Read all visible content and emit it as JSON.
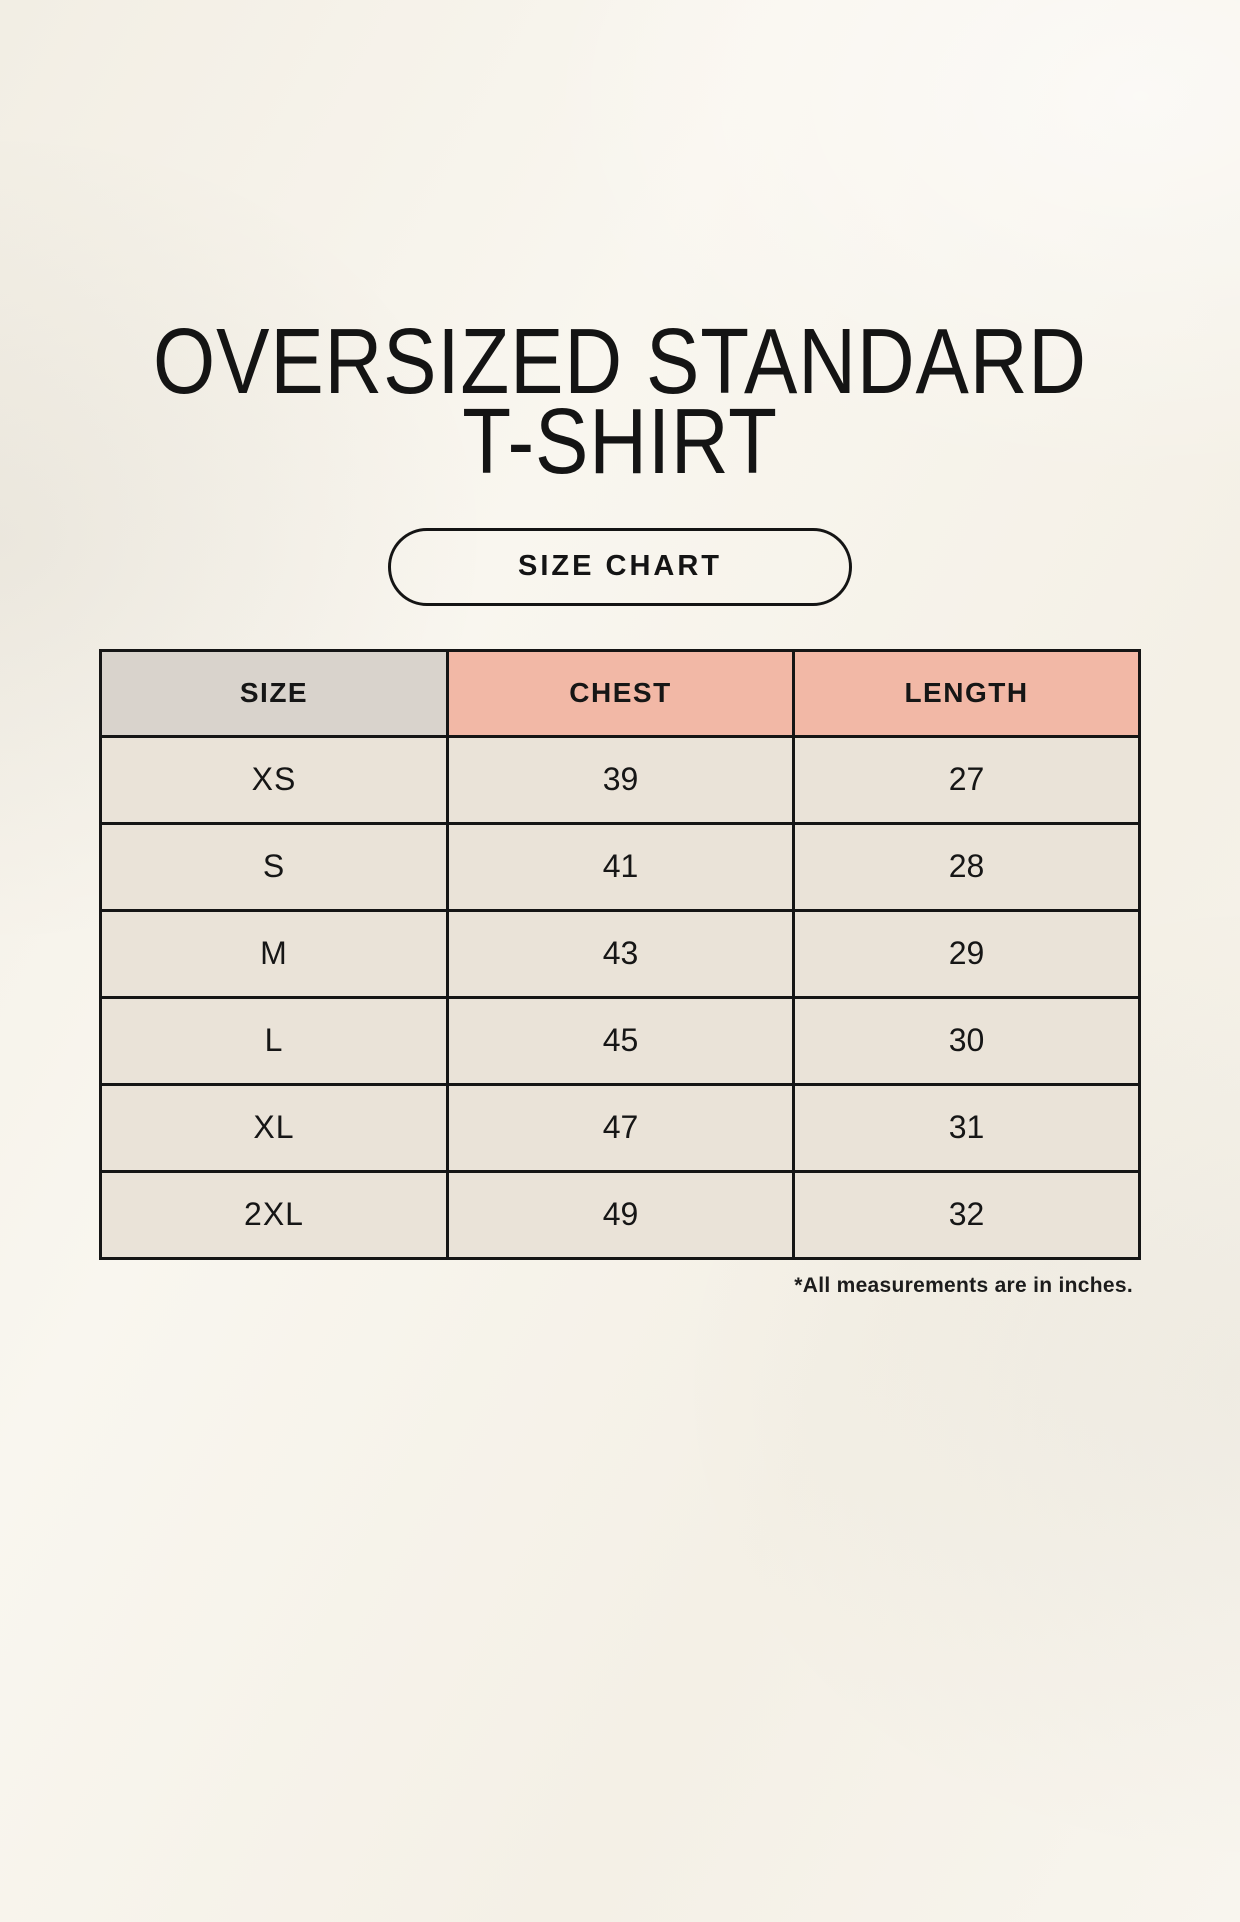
{
  "page": {
    "background_color": "#f7f4ec",
    "text_color": "#161616"
  },
  "title": {
    "line1": "OVERSIZED STANDARD",
    "line2": "T-SHIRT"
  },
  "size_chart_button": {
    "label": "SIZE CHART"
  },
  "size_table": {
    "columns": [
      "SIZE",
      "CHEST",
      "LENGTH"
    ],
    "rows": [
      {
        "size": "XS",
        "chest": "39",
        "length": "27"
      },
      {
        "size": "S",
        "chest": "41",
        "length": "28"
      },
      {
        "size": "M",
        "chest": "43",
        "length": "29"
      },
      {
        "size": "L",
        "chest": "45",
        "length": "30"
      },
      {
        "size": "XL",
        "chest": "47",
        "length": "31"
      },
      {
        "size": "2XL",
        "chest": "49",
        "length": "32"
      }
    ],
    "colors": {
      "size_header_bg": "#d9d3cc",
      "measure_header_bg": "#f2b8a6",
      "size_column_bg": "#d9d3cc",
      "value_cell_bg": "#eae3d8",
      "border": "#151515"
    }
  },
  "footnote": "*All measurements are in inches."
}
